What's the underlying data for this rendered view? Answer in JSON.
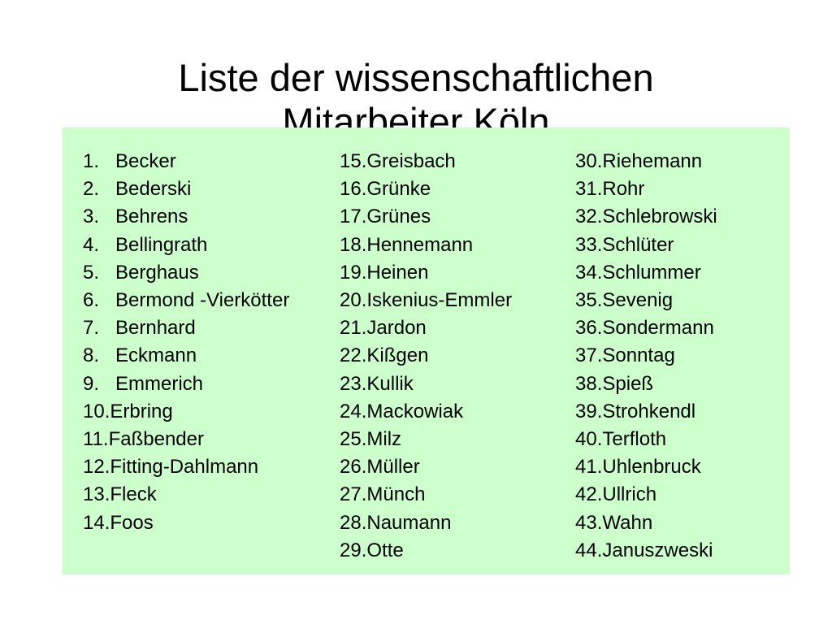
{
  "title": {
    "line1": "Liste der wissenschaftlichen",
    "line2": "Mitarbeiter Köln"
  },
  "colors": {
    "box_background": "#ccffcc",
    "text": "#000000"
  },
  "columns": [
    {
      "items": [
        {
          "num": "1.",
          "name": "Becker"
        },
        {
          "num": "2.",
          "name": "Bederski"
        },
        {
          "num": "3.",
          "name": "Behrens"
        },
        {
          "num": "4.",
          "name": "Bellingrath"
        },
        {
          "num": "5.",
          "name": "Berghaus"
        },
        {
          "num": "6.",
          "name": "Bermond -Vierkötter"
        },
        {
          "num": "7.",
          "name": "Bernhard"
        },
        {
          "num": "8.",
          "name": "Eckmann"
        },
        {
          "num": "9.",
          "name": "Emmerich"
        },
        {
          "num": "10.",
          "name": "Erbring"
        },
        {
          "num": "11.",
          "name": "Faßbender"
        },
        {
          "num": "12.",
          "name": "Fitting-Dahlmann"
        },
        {
          "num": "13.",
          "name": "Fleck"
        },
        {
          "num": "14.",
          "name": "Foos"
        }
      ]
    },
    {
      "items": [
        {
          "num": "15.",
          "name": "Greisbach"
        },
        {
          "num": "16.",
          "name": "Grünke"
        },
        {
          "num": "17.",
          "name": "Grünes"
        },
        {
          "num": "18.",
          "name": "Hennemann"
        },
        {
          "num": "19.",
          "name": "Heinen"
        },
        {
          "num": "20.",
          "name": "Iskenius-Emmler"
        },
        {
          "num": "21.",
          "name": "Jardon"
        },
        {
          "num": "22.",
          "name": "Kißgen"
        },
        {
          "num": "23.",
          "name": "Kullik"
        },
        {
          "num": "24.",
          "name": "Mackowiak"
        },
        {
          "num": "25.",
          "name": "Milz"
        },
        {
          "num": "26.",
          "name": "Müller"
        },
        {
          "num": "27.",
          "name": "Münch"
        },
        {
          "num": "28.",
          "name": "Naumann"
        },
        {
          "num": "29.",
          "name": "Otte"
        }
      ]
    },
    {
      "items": [
        {
          "num": "30.",
          "name": "Riehemann"
        },
        {
          "num": "31.",
          "name": "Rohr"
        },
        {
          "num": "32.",
          "name": "Schlebrowski"
        },
        {
          "num": "33.",
          "name": "Schlüter"
        },
        {
          "num": "34.",
          "name": "Schlummer"
        },
        {
          "num": "35.",
          "name": "Sevenig"
        },
        {
          "num": "36.",
          "name": "Sondermann"
        },
        {
          "num": "37.",
          "name": "Sonntag"
        },
        {
          "num": "38.",
          "name": "Spieß"
        },
        {
          "num": "39.",
          "name": "Strohkendl"
        },
        {
          "num": "40.",
          "name": "Terfloth"
        },
        {
          "num": "41.",
          "name": "Uhlenbruck"
        },
        {
          "num": "42.",
          "name": "Ullrich"
        },
        {
          "num": "43.",
          "name": "Wahn"
        },
        {
          "num": "44.",
          "name": "Januszweski"
        }
      ]
    }
  ]
}
